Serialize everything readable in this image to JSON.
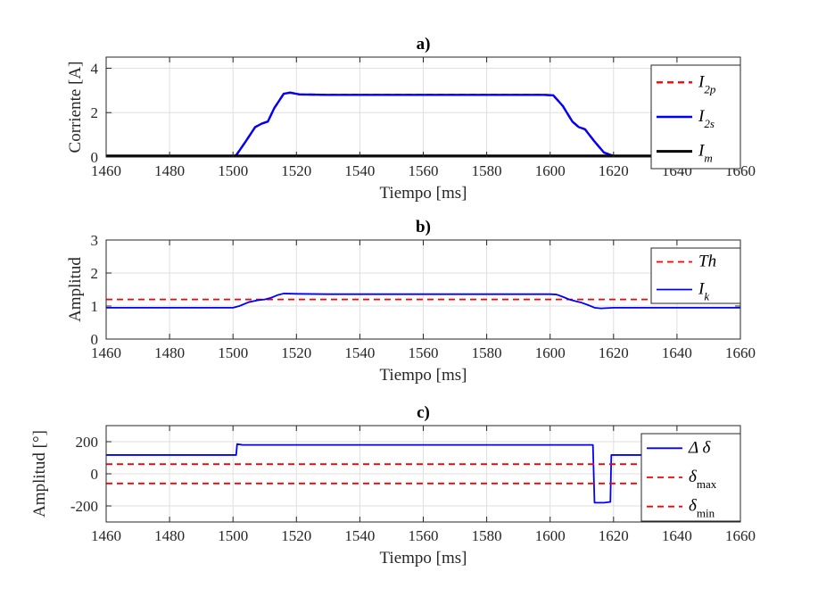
{
  "chart_data": [
    {
      "panel": "a)",
      "type": "line",
      "title": "a)",
      "xlabel": "Tiempo [ms]",
      "ylabel": "Corriente [A]",
      "xlim": [
        1460,
        1660
      ],
      "ylim": [
        0,
        4.5
      ],
      "xticks": [
        1460,
        1480,
        1500,
        1520,
        1540,
        1560,
        1580,
        1600,
        1620,
        1640,
        1660
      ],
      "yticks": [
        0,
        2,
        4
      ],
      "grid": true,
      "legend_position": "top-right",
      "series": [
        {
          "name": "I2p",
          "legend_main": "I",
          "legend_sub": "2p",
          "color": "#ff0000",
          "dash": "dashed",
          "width": 2.4,
          "points": [
            [
              1460,
              0.03
            ],
            [
              1500,
              0.03
            ],
            [
              1501,
              0.08
            ],
            [
              1504,
              0.7
            ],
            [
              1507,
              1.35
            ],
            [
              1509,
              1.5
            ],
            [
              1511,
              1.6
            ],
            [
              1513,
              2.2
            ],
            [
              1516,
              2.85
            ],
            [
              1518,
              2.9
            ],
            [
              1521,
              2.82
            ],
            [
              1530,
              2.8
            ],
            [
              1598,
              2.8
            ],
            [
              1601,
              2.78
            ],
            [
              1604,
              2.3
            ],
            [
              1607,
              1.6
            ],
            [
              1609,
              1.35
            ],
            [
              1611,
              1.25
            ],
            [
              1614,
              0.7
            ],
            [
              1617,
              0.2
            ],
            [
              1620,
              0.05
            ],
            [
              1660,
              0.03
            ]
          ]
        },
        {
          "name": "I2s",
          "legend_main": "I",
          "legend_sub": "2s",
          "color": "#0000ff",
          "dash": "solid",
          "width": 2.4,
          "points": [
            [
              1460,
              0.03
            ],
            [
              1500,
              0.03
            ],
            [
              1501,
              0.08
            ],
            [
              1504,
              0.7
            ],
            [
              1507,
              1.35
            ],
            [
              1509,
              1.5
            ],
            [
              1511,
              1.6
            ],
            [
              1513,
              2.2
            ],
            [
              1516,
              2.85
            ],
            [
              1518,
              2.9
            ],
            [
              1521,
              2.82
            ],
            [
              1530,
              2.8
            ],
            [
              1598,
              2.8
            ],
            [
              1601,
              2.78
            ],
            [
              1604,
              2.3
            ],
            [
              1607,
              1.6
            ],
            [
              1609,
              1.35
            ],
            [
              1611,
              1.25
            ],
            [
              1614,
              0.7
            ],
            [
              1617,
              0.2
            ],
            [
              1620,
              0.05
            ],
            [
              1660,
              0.03
            ]
          ]
        },
        {
          "name": "Im",
          "legend_main": "I",
          "legend_sub": "m",
          "color": "#000000",
          "dash": "solid",
          "width": 3,
          "points": [
            [
              1460,
              0.05
            ],
            [
              1660,
              0.05
            ]
          ]
        }
      ]
    },
    {
      "panel": "b)",
      "type": "line",
      "title": "b)",
      "xlabel": "Tiempo [ms]",
      "ylabel": "Amplitud",
      "xlim": [
        1460,
        1660
      ],
      "ylim": [
        0,
        3
      ],
      "xticks": [
        1460,
        1480,
        1500,
        1520,
        1540,
        1560,
        1580,
        1600,
        1620,
        1640,
        1660
      ],
      "yticks": [
        0,
        1,
        2,
        3
      ],
      "grid": true,
      "legend_position": "top-right",
      "series": [
        {
          "name": "Th",
          "legend_main": "Th",
          "legend_sub": "",
          "color": "#ff0000",
          "dash": "dashed",
          "width": 1.8,
          "points": [
            [
              1460,
              1.2
            ],
            [
              1660,
              1.2
            ]
          ]
        },
        {
          "name": "Ik",
          "legend_main": "I",
          "legend_sub": "k",
          "color": "#0000ff",
          "dash": "solid",
          "width": 1.8,
          "points": [
            [
              1460,
              0.95
            ],
            [
              1500,
              0.95
            ],
            [
              1502,
              1.0
            ],
            [
              1505,
              1.12
            ],
            [
              1508,
              1.18
            ],
            [
              1510,
              1.2
            ],
            [
              1512,
              1.25
            ],
            [
              1514,
              1.33
            ],
            [
              1516,
              1.38
            ],
            [
              1520,
              1.37
            ],
            [
              1530,
              1.36
            ],
            [
              1600,
              1.36
            ],
            [
              1602,
              1.35
            ],
            [
              1604,
              1.28
            ],
            [
              1606,
              1.2
            ],
            [
              1608,
              1.15
            ],
            [
              1610,
              1.1
            ],
            [
              1612,
              1.03
            ],
            [
              1614,
              0.95
            ],
            [
              1616,
              0.93
            ],
            [
              1620,
              0.95
            ],
            [
              1660,
              0.95
            ]
          ]
        }
      ]
    },
    {
      "panel": "c)",
      "type": "line",
      "title": "c)",
      "xlabel": "Tiempo [ms]",
      "ylabel": "Amplitud [°]",
      "xlim": [
        1460,
        1660
      ],
      "ylim": [
        -300,
        300
      ],
      "xticks": [
        1460,
        1480,
        1500,
        1520,
        1540,
        1560,
        1580,
        1600,
        1620,
        1640,
        1660
      ],
      "yticks": [
        -200,
        0,
        200
      ],
      "grid": true,
      "legend_position": "top-right",
      "series": [
        {
          "name": "Δ δ",
          "legend_main": "Δ δ",
          "legend_sub": "",
          "color": "#0000ff",
          "dash": "solid",
          "width": 1.8,
          "points": [
            [
              1460,
              117
            ],
            [
              1501,
              117
            ],
            [
              1501.3,
              185
            ],
            [
              1503,
              180
            ],
            [
              1660,
              180
            ]
          ],
          "segments": [
            [
              [
                1460,
                117
              ],
              [
                1501,
                117
              ],
              [
                1501.3,
                185
              ],
              [
                1503,
                180
              ],
              [
                1613.5,
                180
              ],
              [
                1614,
                -180
              ],
              [
                1617,
                -180
              ],
              [
                1619,
                -175
              ],
              [
                1619.3,
                117
              ],
              [
                1660,
                117
              ]
            ]
          ]
        },
        {
          "name": "δmax",
          "legend_main": "δ",
          "legend_sub": "max",
          "color": "#ff0000",
          "dash": "dashed",
          "width": 1.8,
          "points": [
            [
              1460,
              60
            ],
            [
              1660,
              60
            ]
          ]
        },
        {
          "name": "δmin",
          "legend_main": "δ",
          "legend_sub": "min",
          "color": "#ff0000",
          "dash": "dashed",
          "width": 1.8,
          "points": [
            [
              1460,
              -60
            ],
            [
              1660,
              -60
            ]
          ]
        }
      ]
    }
  ]
}
